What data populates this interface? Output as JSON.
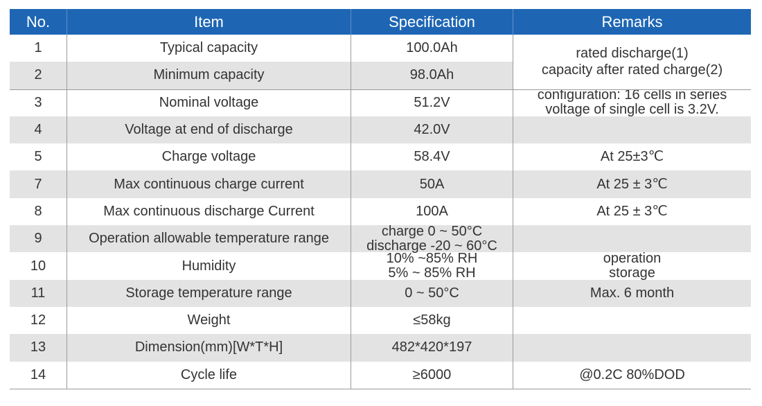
{
  "headers": {
    "no": "No.",
    "item": "Item",
    "spec": "Specification",
    "remarks": "Remarks"
  },
  "rows": [
    {
      "no": "1",
      "item": "Typical capacity",
      "spec": [
        "100.0Ah"
      ],
      "remarks": []
    },
    {
      "no": "2",
      "item": "Minimum capacity",
      "spec": [
        "98.0Ah"
      ],
      "remarks": []
    },
    {
      "no": "3",
      "item": "Nominal voltage",
      "spec": [
        "51.2V"
      ],
      "remarks": [
        "configuration: 16 cells in series",
        "voltage of single cell is 3.2V."
      ]
    },
    {
      "no": "4",
      "item": "Voltage at end of discharge",
      "spec": [
        "42.0V"
      ],
      "remarks": []
    },
    {
      "no": "5",
      "item": "Charge voltage",
      "spec": [
        "58.4V"
      ],
      "remarks": [
        "At 25±3℃"
      ]
    },
    {
      "no": "7",
      "item": "Max continuous charge current",
      "spec": [
        "50A"
      ],
      "remarks": [
        "At 25 ± 3℃"
      ]
    },
    {
      "no": "8",
      "item": "Max continuous discharge Current",
      "spec": [
        "100A"
      ],
      "remarks": [
        "At 25 ± 3℃"
      ]
    },
    {
      "no": "9",
      "item": "Operation allowable temperature range",
      "spec": [
        "charge 0 ~ 50°C",
        "discharge -20 ~ 60°C"
      ],
      "remarks": []
    },
    {
      "no": "10",
      "item": "Humidity",
      "spec": [
        "10% ~85% RH",
        "5% ~ 85% RH"
      ],
      "remarks": [
        "operation",
        "storage"
      ]
    },
    {
      "no": "11",
      "item": "Storage temperature range",
      "spec": [
        "0 ~ 50°C"
      ],
      "remarks": [
        "Max. 6 month"
      ]
    },
    {
      "no": "12",
      "item": "Weight",
      "spec": [
        "≤58kg"
      ],
      "remarks": []
    },
    {
      "no": "13",
      "item": "Dimension(mm)[W*T*H]",
      "spec": [
        "482*420*197"
      ],
      "remarks": []
    },
    {
      "no": "14",
      "item": "Cycle life",
      "spec": [
        "≥6000"
      ],
      "remarks": [
        "@0.2C 80%DOD"
      ]
    }
  ],
  "merged_remark_rows_1_2": [
    "rated discharge(1)",
    "capacity after rated charge(2)"
  ],
  "colors": {
    "header_bg": "#1e66b4",
    "stripe": "#e3e3e3"
  }
}
